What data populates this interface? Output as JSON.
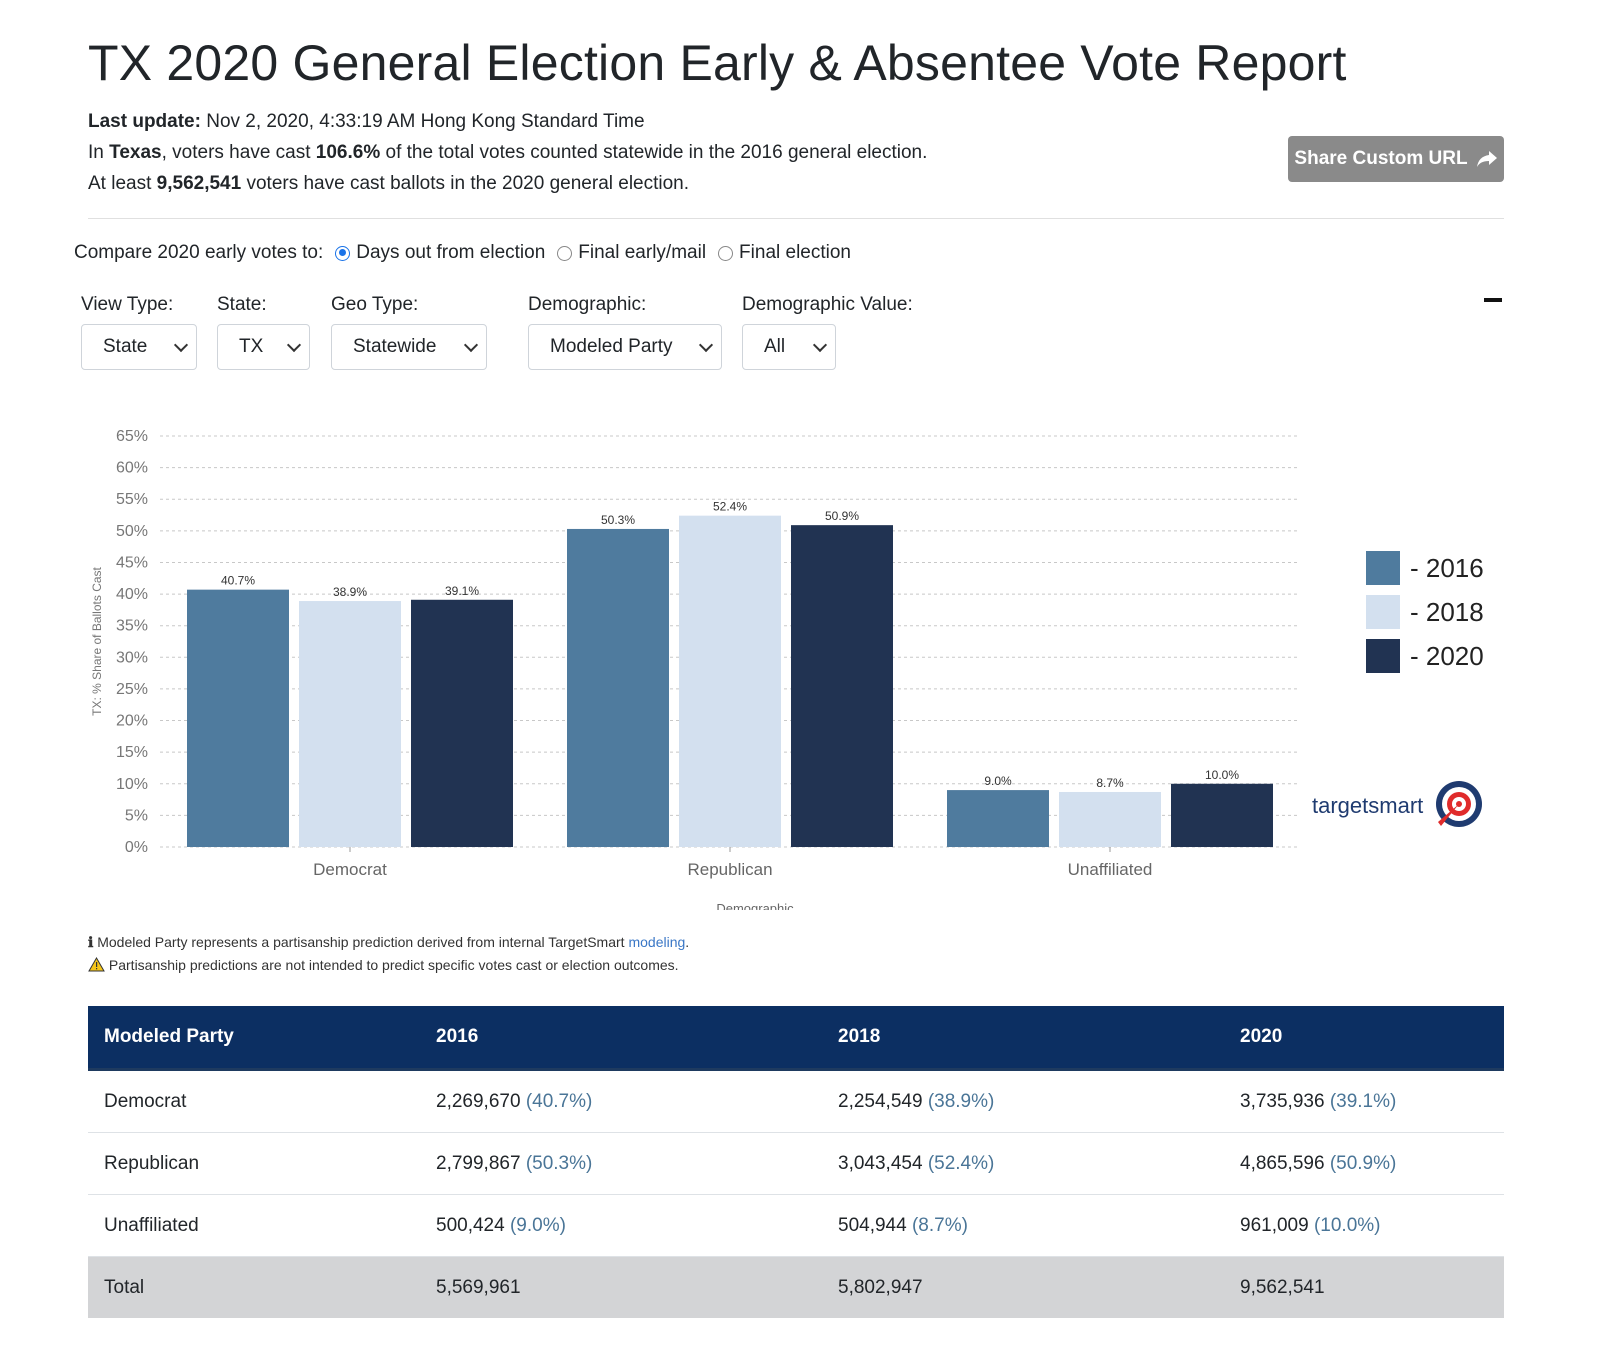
{
  "header": {
    "title": "TX 2020 General Election Early & Absentee Vote Report",
    "last_update_label": "Last update:",
    "last_update_value": "Nov 2, 2020, 4:33:19 AM Hong Kong Standard Time",
    "line2_a": "In",
    "line2_state": "Texas",
    "line2_b": ", voters have cast",
    "line2_pct": "106.6%",
    "line2_c": "of the total votes counted statewide in the 2016 general election.",
    "line3_a": "At least",
    "line3_count": "9,562,541",
    "line3_b": "voters have cast ballots in the 2020 general election.",
    "share_label": "Share Custom URL"
  },
  "compare": {
    "label": "Compare 2020 early votes to:",
    "options": [
      {
        "label": "Days out from election",
        "checked": true
      },
      {
        "label": "Final early/mail",
        "checked": false
      },
      {
        "label": "Final election",
        "checked": false
      }
    ]
  },
  "filters": {
    "view_type": {
      "label": "View Type:",
      "value": "State"
    },
    "state": {
      "label": "State:",
      "value": "TX"
    },
    "geo_type": {
      "label": "Geo Type:",
      "value": "Statewide"
    },
    "demographic": {
      "label": "Demographic:",
      "value": "Modeled Party"
    },
    "demographic_value": {
      "label": "Demographic Value:",
      "value": "All"
    }
  },
  "colors": {
    "s2016": "#4f7b9e",
    "s2018": "#d3e0ef",
    "s2020": "#213352",
    "header_bg": "#0c2f62"
  },
  "chart_data": {
    "type": "bar",
    "categories": [
      "Democrat",
      "Republican",
      "Unaffiliated"
    ],
    "series": [
      {
        "name": "2016",
        "values": [
          40.7,
          50.3,
          9.0
        ]
      },
      {
        "name": "2018",
        "values": [
          38.9,
          52.4,
          8.7
        ]
      },
      {
        "name": "2020",
        "values": [
          39.1,
          50.9,
          10.0
        ]
      }
    ],
    "xlabel": "Demographic",
    "ylabel": "TX: % Share of Ballots Cast",
    "ylim": [
      0,
      65
    ],
    "yticks": [
      "0%",
      "5%",
      "10%",
      "15%",
      "20%",
      "25%",
      "30%",
      "35%",
      "40%",
      "45%",
      "50%",
      "55%",
      "60%",
      "65%"
    ],
    "grid": true,
    "legend_position": "right",
    "legend": [
      "- 2016",
      "- 2018",
      "- 2020"
    ]
  },
  "logo_text": "targetsmart",
  "notes": {
    "info_text": "Modeled Party represents a partisanship prediction derived from internal TargetSmart",
    "info_link": "modeling",
    "info_end": ".",
    "warning_text": "Partisanship predictions are not intended to predict specific votes cast or election outcomes."
  },
  "table": {
    "headers": [
      "Modeled Party",
      "2016",
      "2018",
      "2020"
    ],
    "rows": [
      {
        "party": "Democrat",
        "v2016": "2,269,670",
        "p2016": "(40.7%)",
        "v2018": "2,254,549",
        "p2018": "(38.9%)",
        "v2020": "3,735,936",
        "p2020": "(39.1%)"
      },
      {
        "party": "Republican",
        "v2016": "2,799,867",
        "p2016": "(50.3%)",
        "v2018": "3,043,454",
        "p2018": "(52.4%)",
        "v2020": "4,865,596",
        "p2020": "(50.9%)"
      },
      {
        "party": "Unaffiliated",
        "v2016": "500,424",
        "p2016": "(9.0%)",
        "v2018": "504,944",
        "p2018": "(8.7%)",
        "v2020": "961,009",
        "p2020": "(10.0%)"
      }
    ],
    "total": {
      "label": "Total",
      "v2016": "5,569,961",
      "v2018": "5,802,947",
      "v2020": "9,562,541"
    }
  }
}
